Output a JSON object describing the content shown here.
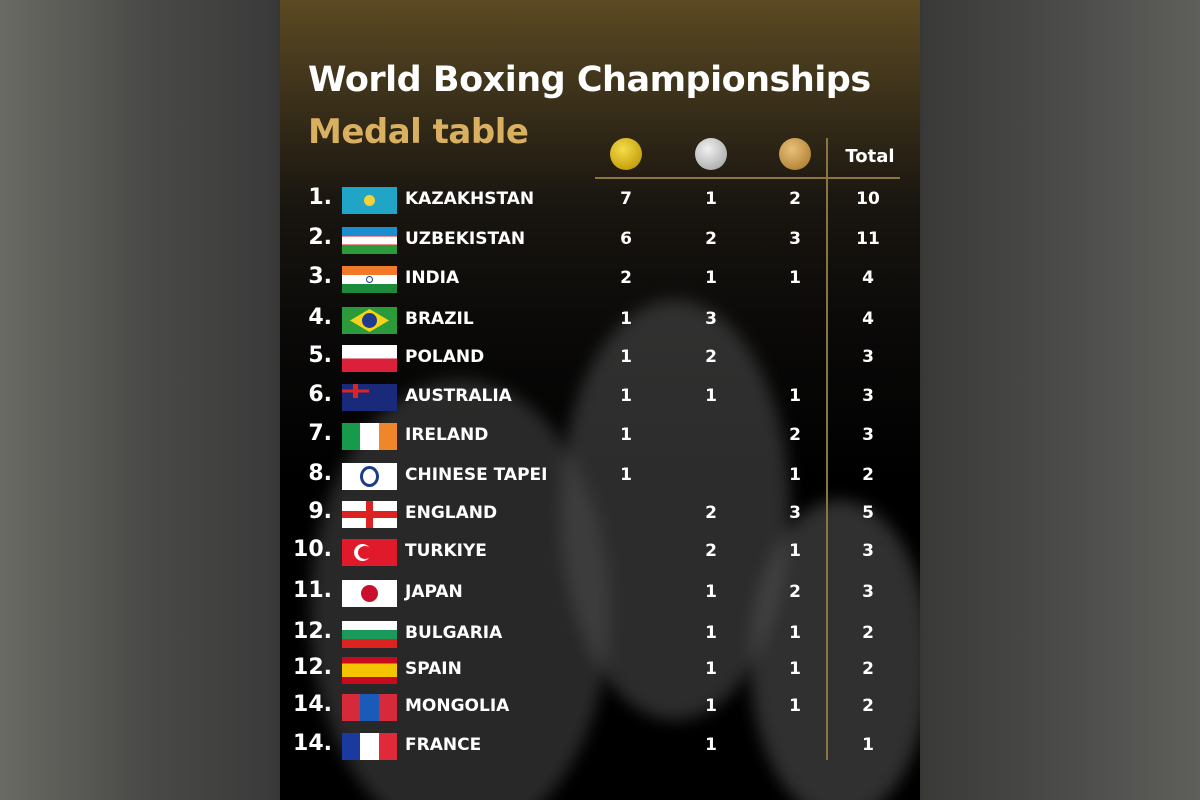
{
  "title": "World Boxing Championships",
  "subtitle": "Medal table",
  "columns": {
    "gold": "gold-medal-icon",
    "silver": "silver-medal-icon",
    "bronze": "bronze-medal-icon",
    "total": "Total"
  },
  "colors": {
    "accent": "#d8b060",
    "gold": "#d4b020",
    "silver": "#c0c0c0",
    "bronze": "#c29248"
  },
  "rows": [
    {
      "rank": "1.",
      "country": "KAZAKHSTAN",
      "flag": "kazakhstan-flag-icon",
      "gold": "7",
      "silver": "1",
      "bronze": "2",
      "total": "10"
    },
    {
      "rank": "2.",
      "country": "UZBEKISTAN",
      "flag": "uzbekistan-flag-icon",
      "gold": "6",
      "silver": "2",
      "bronze": "3",
      "total": "11"
    },
    {
      "rank": "3.",
      "country": "INDIA",
      "flag": "india-flag-icon",
      "gold": "2",
      "silver": "1",
      "bronze": "1",
      "total": "4"
    },
    {
      "rank": "4.",
      "country": "BRAZIL",
      "flag": "brazil-flag-icon",
      "gold": "1",
      "silver": "3",
      "bronze": "",
      "total": "4"
    },
    {
      "rank": "5.",
      "country": "POLAND",
      "flag": "poland-flag-icon",
      "gold": "1",
      "silver": "2",
      "bronze": "",
      "total": "3"
    },
    {
      "rank": "6.",
      "country": "AUSTRALIA",
      "flag": "australia-flag-icon",
      "gold": "1",
      "silver": "1",
      "bronze": "1",
      "total": "3"
    },
    {
      "rank": "7.",
      "country": "IRELAND",
      "flag": "ireland-flag-icon",
      "gold": "1",
      "silver": "",
      "bronze": "2",
      "total": "3"
    },
    {
      "rank": "8.",
      "country": "CHINESE TAPEI",
      "flag": "chinese-taipei-flag-icon",
      "gold": "1",
      "silver": "",
      "bronze": "1",
      "total": "2"
    },
    {
      "rank": "9.",
      "country": "ENGLAND",
      "flag": "england-flag-icon",
      "gold": "",
      "silver": "2",
      "bronze": "3",
      "total": "5"
    },
    {
      "rank": "10.",
      "country": "TURKIYE",
      "flag": "turkiye-flag-icon",
      "gold": "",
      "silver": "2",
      "bronze": "1",
      "total": "3"
    },
    {
      "rank": "11.",
      "country": "JAPAN",
      "flag": "japan-flag-icon",
      "gold": "",
      "silver": "1",
      "bronze": "2",
      "total": "3"
    },
    {
      "rank": "12.",
      "country": "BULGARIA",
      "flag": "bulgaria-flag-icon",
      "gold": "",
      "silver": "1",
      "bronze": "1",
      "total": "2"
    },
    {
      "rank": "12.",
      "country": "SPAIN",
      "flag": "spain-flag-icon",
      "gold": "",
      "silver": "1",
      "bronze": "1",
      "total": "2"
    },
    {
      "rank": "14.",
      "country": "MONGOLIA",
      "flag": "mongolia-flag-icon",
      "gold": "",
      "silver": "1",
      "bronze": "1",
      "total": "2"
    },
    {
      "rank": "14.",
      "country": "FRANCE",
      "flag": "france-flag-icon",
      "gold": "",
      "silver": "1",
      "bronze": "",
      "total": "1"
    }
  ]
}
